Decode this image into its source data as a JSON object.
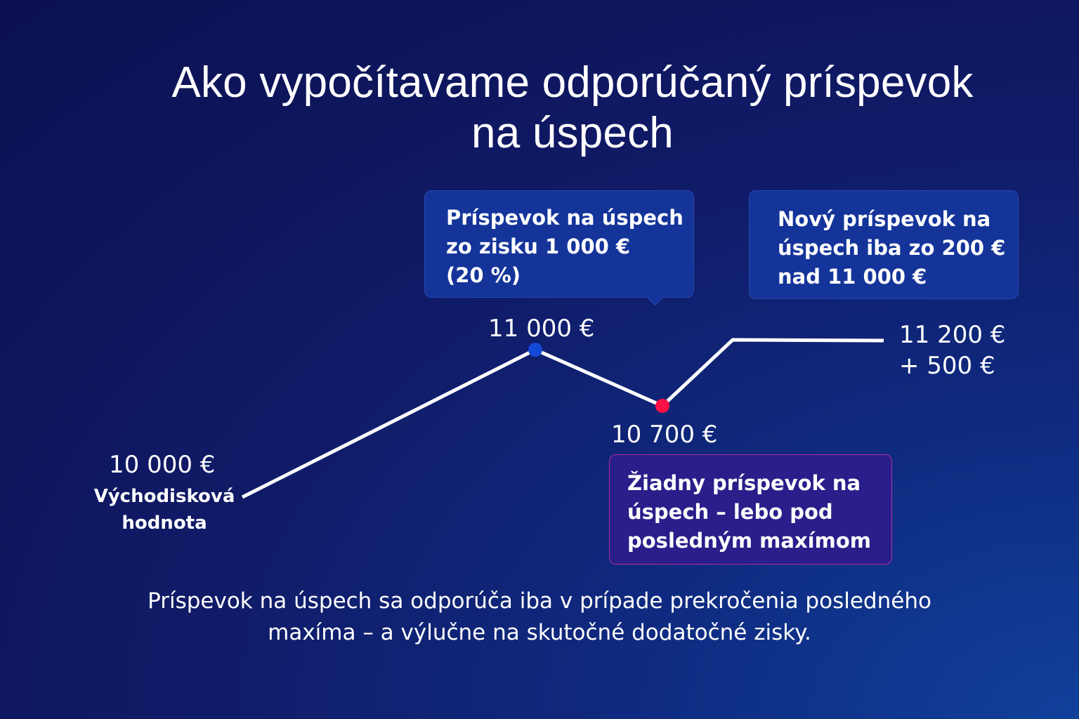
{
  "title": {
    "line1": "Ako vypočítavame odporúčaný príspevok",
    "line2": "na úspech"
  },
  "callouts": {
    "gain_fee": {
      "line1": "Príspevok na úspech",
      "line2": "zo zisku 1 000 €",
      "line3": "(20 %)"
    },
    "new_fee": {
      "line1": "Nový príspevok na",
      "line2": "úspech iba zo 200 €",
      "line3": "nad 11 000 €"
    },
    "no_fee": {
      "line1": "Žiadny príspevok na",
      "line2": "úspech – lebo pod",
      "line3": "posledným maxímom"
    }
  },
  "points": {
    "start_value": "10 000 €",
    "start_label_line1": "Východisková",
    "start_label_line2": "hodnota",
    "peak_value": "11 000 €",
    "dip_value": "10 700 €",
    "end_value": "11 200 €",
    "end_extra": "+ 500 €"
  },
  "colors": {
    "peak_marker": "#1448d6",
    "dip_marker": "#ff1044",
    "line": "#ffffff"
  },
  "footer": {
    "line1": "Príspevok na úspech sa odporúča iba v prípade prekročenia posledného",
    "line2": "maxíma – a výlučne na skutočné dodatočné zisky."
  }
}
